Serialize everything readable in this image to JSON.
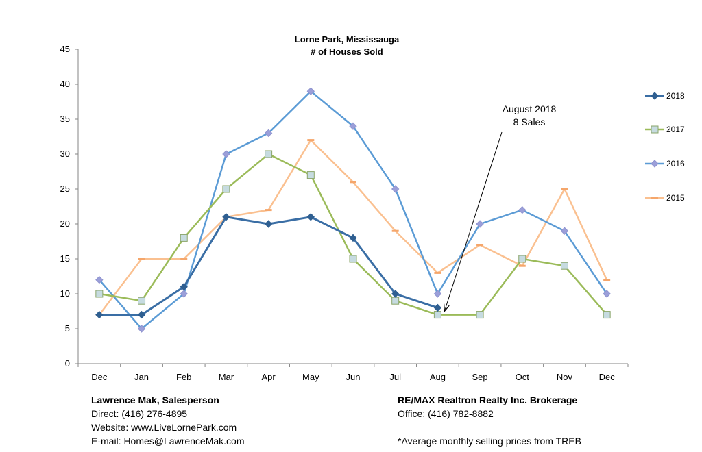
{
  "chart_data": {
    "type": "line",
    "title_line1": "Lorne Park, Mississauga",
    "title_line2": "# of Houses Sold",
    "categories": [
      "Dec",
      "Jan",
      "Feb",
      "Mar",
      "Apr",
      "May",
      "Jun",
      "Jul",
      "Aug",
      "Sep",
      "Oct",
      "Nov",
      "Dec"
    ],
    "ylim": [
      0,
      45
    ],
    "yticks": [
      0,
      5,
      10,
      15,
      20,
      25,
      30,
      35,
      40,
      45
    ],
    "grid": false,
    "legend_position": "right",
    "series": [
      {
        "name": "2018",
        "color": "#3a6ea5",
        "marker": "diamond",
        "values": [
          7,
          7,
          11,
          21,
          20,
          21,
          18,
          10,
          8,
          null,
          null,
          null,
          null
        ]
      },
      {
        "name": "2017",
        "color": "#9bbb59",
        "marker": "square",
        "values": [
          10,
          9,
          18,
          25,
          30,
          27,
          15,
          9,
          7,
          7,
          15,
          14,
          7
        ]
      },
      {
        "name": "2016",
        "color": "#5b9bd5",
        "marker": "diamond-light",
        "values": [
          12,
          5,
          10,
          30,
          33,
          39,
          34,
          25,
          10,
          20,
          22,
          19,
          10
        ]
      },
      {
        "name": "2015",
        "color": "#fac090",
        "marker": "dash",
        "values": [
          7,
          15,
          15,
          21,
          22,
          32,
          26,
          19,
          13,
          17,
          14,
          25,
          12
        ]
      }
    ],
    "annotation": {
      "line1": "August 2018",
      "line2": "8 Sales",
      "category": "Aug",
      "value": 8
    }
  },
  "footer": {
    "left": {
      "name": "Lawrence Mak, Salesperson",
      "direct": "Direct:  (416) 276-4895",
      "website": "Website:  www.LiveLornePark.com",
      "email": "E-mail:  Homes@LawrenceMak.com"
    },
    "right": {
      "brokerage": "RE/MAX Realtron Realty Inc. Brokerage",
      "office": "Office: (416) 782-8882",
      "note": "*Average monthly selling prices from TREB"
    }
  }
}
